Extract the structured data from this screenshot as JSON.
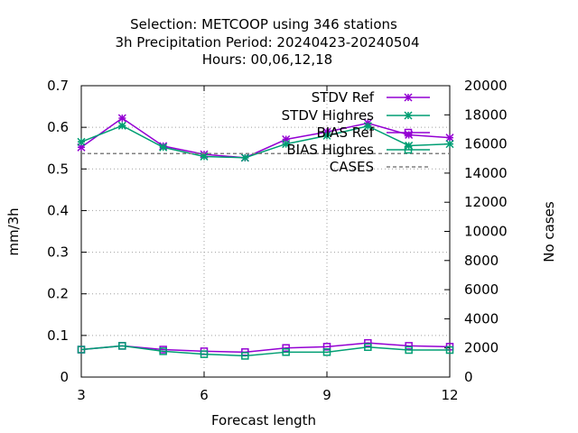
{
  "chart_data": {
    "type": "line",
    "title_lines": [
      "Selection: METCOOP using   346 stations",
      "3h Precipitation   Period: 20240423-20240504",
      "Hours:  00,06,12,18"
    ],
    "xlabel": "Forecast length",
    "ylabel": "mm/3h",
    "y2label": "No cases",
    "xlim": [
      3,
      12
    ],
    "ylim": [
      0,
      0.7
    ],
    "y2lim": [
      0,
      20000
    ],
    "xticks": [
      "3",
      "6",
      "9",
      "12"
    ],
    "xtick_values": [
      3,
      6,
      9,
      12
    ],
    "yticks": [
      "0",
      "0.1",
      "0.2",
      "0.3",
      "0.4",
      "0.5",
      "0.6",
      "0.7"
    ],
    "ytick_values": [
      0,
      0.1,
      0.2,
      0.3,
      0.4,
      0.5,
      0.6,
      0.7
    ],
    "y2ticks": [
      "0",
      "2000",
      "4000",
      "6000",
      "8000",
      "10000",
      "12000",
      "14000",
      "16000",
      "18000",
      "20000"
    ],
    "y2tick_values": [
      0,
      2000,
      4000,
      6000,
      8000,
      10000,
      12000,
      14000,
      16000,
      18000,
      20000
    ],
    "grid": true,
    "legend_position": "top-right",
    "x": [
      3,
      4,
      5,
      6,
      7,
      8,
      9,
      10,
      11,
      12
    ],
    "series": [
      {
        "name": "STDV Ref",
        "color": "#9400d3",
        "marker": "asterisk",
        "values": [
          0.552,
          0.622,
          0.555,
          0.535,
          0.527,
          0.571,
          0.589,
          0.61,
          0.582,
          0.575
        ]
      },
      {
        "name": "STDV Highres",
        "color": "#009e73",
        "marker": "asterisk",
        "values": [
          0.565,
          0.604,
          0.552,
          0.53,
          0.527,
          0.56,
          0.58,
          0.603,
          0.556,
          0.56
        ]
      },
      {
        "name": "BIAS Ref",
        "color": "#9400d3",
        "marker": "square",
        "values": [
          0.066,
          0.075,
          0.066,
          0.062,
          0.06,
          0.07,
          0.073,
          0.082,
          0.075,
          0.073
        ]
      },
      {
        "name": "BIAS Highres",
        "color": "#009e73",
        "marker": "square",
        "values": [
          0.066,
          0.075,
          0.062,
          0.055,
          0.051,
          0.06,
          0.06,
          0.072,
          0.065,
          0.065
        ]
      },
      {
        "name": "CASES",
        "color": "#808080",
        "dashed": true,
        "axis": "y2",
        "values": [
          15340,
          15340,
          15340,
          15340,
          15340,
          15340,
          15340,
          15340,
          15340,
          15340
        ]
      }
    ]
  }
}
